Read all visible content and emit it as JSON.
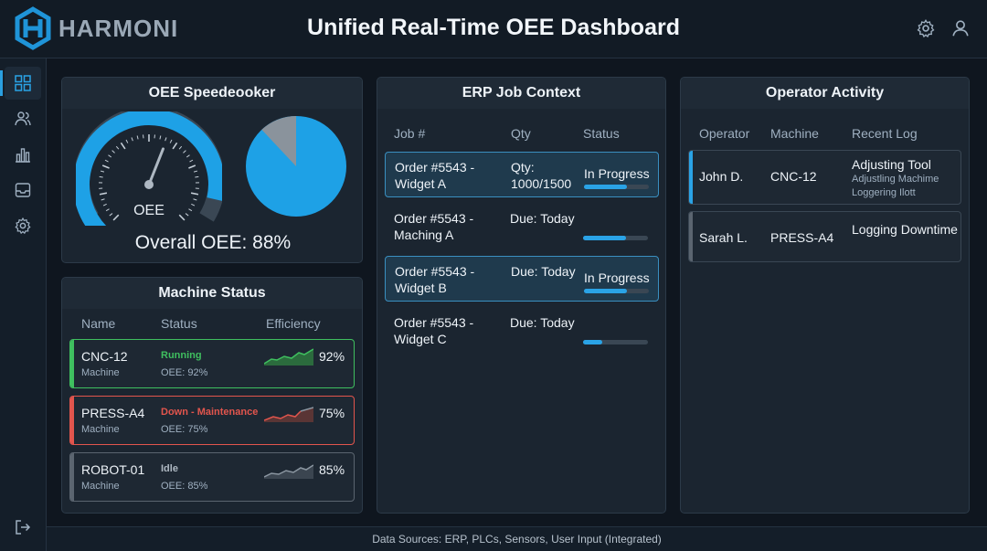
{
  "header": {
    "brand": "HARMONI",
    "title": "Unified Real-Time OEE Dashboard",
    "icons": [
      "settings-icon",
      "user-icon"
    ]
  },
  "sidebar": {
    "items": [
      {
        "icon": "dashboard-grid-icon",
        "active": true
      },
      {
        "icon": "users-icon",
        "active": false
      },
      {
        "icon": "bar-chart-icon",
        "active": false
      },
      {
        "icon": "inbox-icon",
        "active": false
      },
      {
        "icon": "gear-icon",
        "active": false
      }
    ],
    "bottom_icon": "logout-icon"
  },
  "oee": {
    "title": "OEE Speedeooker",
    "gauge_label": "OEE",
    "overall": "Overall OEE: 88%",
    "value": 0.88,
    "pie_fraction": 0.88
  },
  "machines": {
    "title": "Machine Status",
    "columns": [
      "Name",
      "Status",
      "Efficiency"
    ],
    "rows": [
      {
        "name": "CNC-12",
        "type": "Machine",
        "status": "Running",
        "oee": "OEE: 92%",
        "efficiency": "92%",
        "color": "#3fbf5f"
      },
      {
        "name": "PRESS-A4",
        "type": "Machine",
        "status": "Down - Maintenance",
        "oee": "OEE: 75%",
        "efficiency": "75%",
        "color": "#e2554d"
      },
      {
        "name": "ROBOT-01",
        "type": "Machine",
        "status": "Idle",
        "oee": "OEE: 85%",
        "efficiency": "85%",
        "color": "#8b96a1"
      }
    ]
  },
  "erp": {
    "title": "ERP Job Context",
    "columns": [
      "Job #",
      "Qty",
      "Status"
    ],
    "rows": [
      {
        "job": "Order #5543 - Widget A",
        "qty": "Qty: 1000/1500",
        "status": "In Progress",
        "progress": 0.66,
        "highlight": true
      },
      {
        "job": "Order #5543 - Maching A",
        "qty": "Due: Today",
        "status": "",
        "progress": 0.66,
        "highlight": false
      },
      {
        "job": "Order #5543 - Widget B",
        "qty": "Due: Today",
        "status": "In Progress",
        "progress": 0.66,
        "highlight": true
      },
      {
        "job": "Order #5543 - Widget C",
        "qty": "Due: Today",
        "status": "",
        "progress": 0.3,
        "highlight": false
      }
    ]
  },
  "operators": {
    "title": "Operator Activity",
    "columns": [
      "Operator",
      "Machine",
      "Recent Log"
    ],
    "rows": [
      {
        "operator": "John D.",
        "machine": "CNC-12",
        "log": "Adjusting Tool",
        "log_sub": "Adjustling Machime Loggering Ilott",
        "color": "#2aa3e6"
      },
      {
        "operator": "Sarah L.",
        "machine": "PRESS-A4",
        "log": "Logging Downtime",
        "log_sub": "",
        "color": "#5b6570"
      }
    ]
  },
  "footer": {
    "sources": "Data Sources: ERP, PLCs, Sensors, User Input (Integrated)"
  }
}
